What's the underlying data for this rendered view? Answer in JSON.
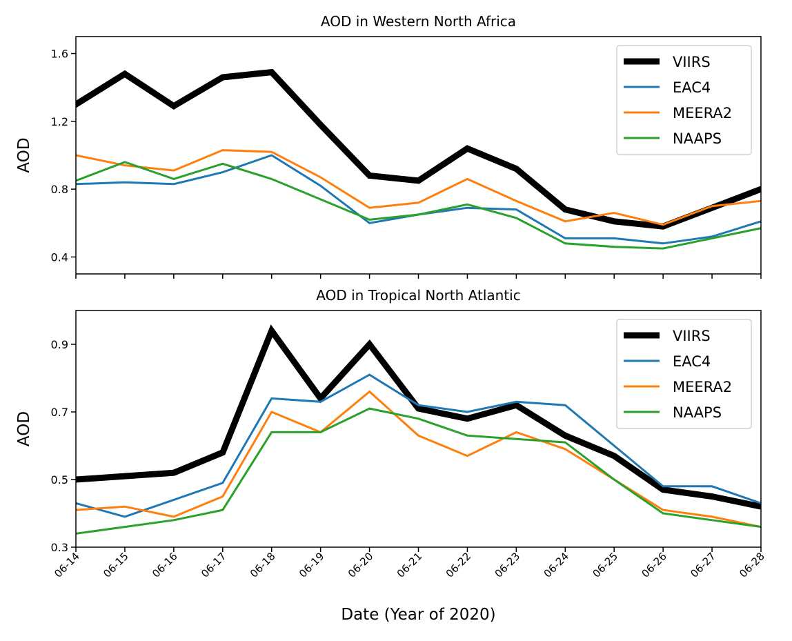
{
  "chart_data": [
    {
      "type": "line",
      "title": "AOD in Western North Africa",
      "xlabel": "",
      "ylabel": "AOD",
      "x": [
        "06-14",
        "06-15",
        "06-16",
        "06-17",
        "06-18",
        "06-19",
        "06-20",
        "06-21",
        "06-22",
        "06-23",
        "06-24",
        "06-25",
        "06-26",
        "06-27",
        "06-28"
      ],
      "ylim": [
        0.3,
        1.7
      ],
      "yticks": [
        0.4,
        0.8,
        1.2,
        1.6
      ],
      "ytick_labels": [
        "0.4",
        "0.8",
        "1.2",
        "1.6"
      ],
      "show_xtick_labels": false,
      "grid": false,
      "legend_position": "top-right",
      "series": [
        {
          "name": "VIIRS",
          "color": "#000000",
          "values": [
            1.3,
            1.48,
            1.29,
            1.46,
            1.49,
            1.18,
            0.88,
            0.85,
            1.04,
            0.92,
            0.68,
            0.61,
            0.58,
            0.69,
            0.8
          ]
        },
        {
          "name": "EAC4",
          "color": "#1f77b4",
          "values": [
            0.83,
            0.84,
            0.83,
            0.9,
            1.0,
            0.82,
            0.6,
            0.65,
            0.69,
            0.68,
            0.51,
            0.51,
            0.48,
            0.52,
            0.61
          ]
        },
        {
          "name": "MEERA2",
          "color": "#ff7f0e",
          "values": [
            1.0,
            0.94,
            0.91,
            1.03,
            1.02,
            0.87,
            0.69,
            0.72,
            0.86,
            0.73,
            0.61,
            0.66,
            0.59,
            0.7,
            0.73
          ]
        },
        {
          "name": "NAAPS",
          "color": "#2ca02c",
          "values": [
            0.85,
            0.96,
            0.86,
            0.95,
            0.86,
            0.74,
            0.62,
            0.65,
            0.71,
            0.63,
            0.48,
            0.46,
            0.45,
            0.51,
            0.57
          ]
        }
      ]
    },
    {
      "type": "line",
      "title": "AOD in Tropical North Atlantic",
      "xlabel": "Date (Year of 2020)",
      "ylabel": "AOD",
      "x": [
        "06-14",
        "06-15",
        "06-16",
        "06-17",
        "06-18",
        "06-19",
        "06-20",
        "06-21",
        "06-22",
        "06-23",
        "06-24",
        "06-25",
        "06-26",
        "06-27",
        "06-28"
      ],
      "ylim": [
        0.3,
        1.0
      ],
      "yticks": [
        0.3,
        0.5,
        0.7,
        0.9
      ],
      "ytick_labels": [
        "0.3",
        "0.5",
        "0.7",
        "0.9"
      ],
      "show_xtick_labels": true,
      "grid": false,
      "legend_position": "top-right",
      "series": [
        {
          "name": "VIIRS",
          "color": "#000000",
          "values": [
            0.5,
            0.51,
            0.52,
            0.58,
            0.94,
            0.74,
            0.9,
            0.71,
            0.68,
            0.72,
            0.63,
            0.57,
            0.47,
            0.45,
            0.42
          ]
        },
        {
          "name": "EAC4",
          "color": "#1f77b4",
          "values": [
            0.43,
            0.39,
            0.44,
            0.49,
            0.74,
            0.73,
            0.81,
            0.72,
            0.7,
            0.73,
            0.72,
            0.6,
            0.48,
            0.48,
            0.43
          ]
        },
        {
          "name": "MEERA2",
          "color": "#ff7f0e",
          "values": [
            0.41,
            0.42,
            0.39,
            0.45,
            0.7,
            0.64,
            0.76,
            0.63,
            0.57,
            0.64,
            0.59,
            0.5,
            0.41,
            0.39,
            0.36
          ]
        },
        {
          "name": "NAAPS",
          "color": "#2ca02c",
          "values": [
            0.34,
            0.36,
            0.38,
            0.41,
            0.64,
            0.64,
            0.71,
            0.68,
            0.63,
            0.62,
            0.61,
            0.5,
            0.4,
            0.38,
            0.36
          ]
        }
      ]
    }
  ]
}
